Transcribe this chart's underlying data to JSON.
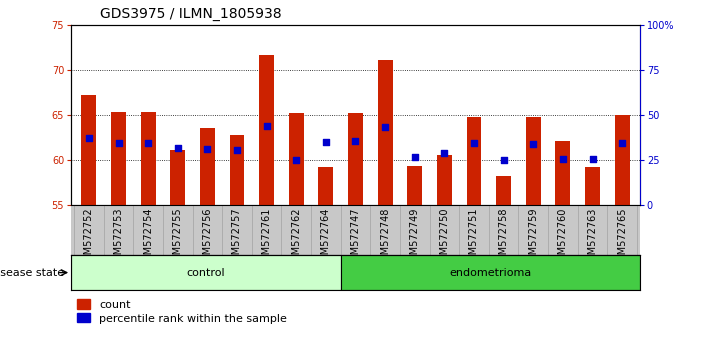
{
  "title": "GDS3975 / ILMN_1805938",
  "samples": [
    "GSM572752",
    "GSM572753",
    "GSM572754",
    "GSM572755",
    "GSM572756",
    "GSM572757",
    "GSM572761",
    "GSM572762",
    "GSM572764",
    "GSM572747",
    "GSM572748",
    "GSM572749",
    "GSM572750",
    "GSM572751",
    "GSM572758",
    "GSM572759",
    "GSM572760",
    "GSM572763",
    "GSM572765"
  ],
  "bar_values": [
    67.2,
    65.3,
    65.3,
    61.1,
    63.6,
    62.8,
    71.7,
    65.2,
    59.3,
    65.2,
    71.1,
    59.4,
    60.6,
    64.8,
    58.3,
    64.8,
    62.1,
    59.3,
    65.0
  ],
  "blue_dot_values": [
    62.5,
    61.9,
    61.9,
    61.3,
    61.2,
    61.1,
    63.8,
    60.0,
    62.0,
    62.1,
    63.7,
    60.4,
    60.8,
    61.9,
    60.0,
    61.8,
    60.1,
    60.1,
    61.9
  ],
  "control_count": 9,
  "endometrioma_count": 10,
  "ylim_left": [
    55,
    75
  ],
  "yticks_left": [
    55,
    60,
    65,
    70,
    75
  ],
  "ylim_right": [
    0,
    100
  ],
  "yticks_right": [
    0,
    25,
    50,
    75,
    100
  ],
  "bar_color": "#cc2200",
  "dot_color": "#0000cc",
  "bar_width": 0.5,
  "control_bg": "#ccffcc",
  "endometrioma_bg": "#44cc44",
  "grid_color": "#000000",
  "title_fontsize": 10,
  "tick_fontsize": 7,
  "label_fontsize": 8,
  "legend_fontsize": 8,
  "disease_state_label": "disease state",
  "control_label": "control",
  "endometrioma_label": "endometrioma",
  "legend_count": "count",
  "legend_percentile": "percentile rank within the sample",
  "right_ytick_labels": [
    "0",
    "25",
    "50",
    "75",
    "100%"
  ]
}
